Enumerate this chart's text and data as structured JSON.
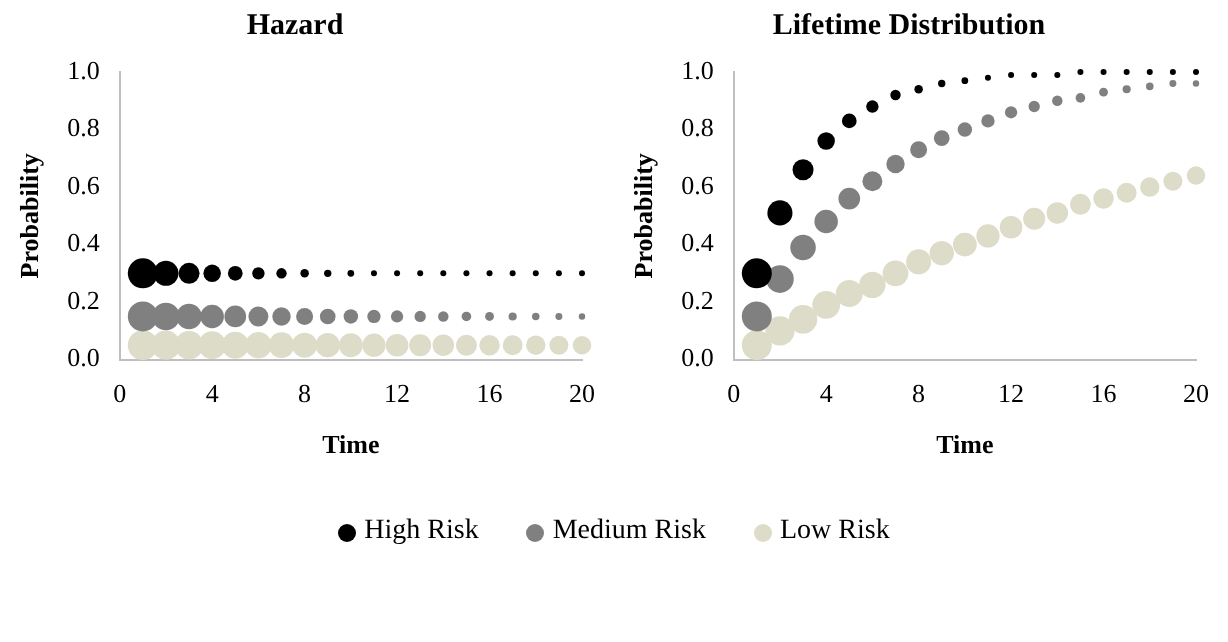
{
  "chart_data": [
    {
      "type": "bubble",
      "title": "Hazard",
      "xlabel": "Time",
      "ylabel": "Probability",
      "x": [
        1,
        2,
        3,
        4,
        5,
        6,
        7,
        8,
        9,
        10,
        11,
        12,
        13,
        14,
        15,
        16,
        17,
        18,
        19,
        20
      ],
      "series": [
        {
          "name": "High Risk",
          "color": "#000000",
          "values": [
            0.3,
            0.3,
            0.3,
            0.3,
            0.3,
            0.3,
            0.3,
            0.3,
            0.3,
            0.3,
            0.3,
            0.3,
            0.3,
            0.3,
            0.3,
            0.3,
            0.3,
            0.3,
            0.3,
            0.3
          ],
          "sizes": [
            1,
            0.7,
            0.49,
            0.34,
            0.24,
            0.17,
            0.12,
            0.08,
            0.06,
            0.05,
            0.04,
            0.04,
            0.04,
            0.04,
            0.04,
            0.04,
            0.04,
            0.04,
            0.04,
            0.04
          ]
        },
        {
          "name": "Medium Risk",
          "color": "#808080",
          "values": [
            0.15,
            0.15,
            0.15,
            0.15,
            0.15,
            0.15,
            0.15,
            0.15,
            0.15,
            0.15,
            0.15,
            0.15,
            0.15,
            0.15,
            0.15,
            0.15,
            0.15,
            0.15,
            0.15,
            0.15
          ],
          "sizes": [
            1,
            0.85,
            0.723,
            0.614,
            0.522,
            0.444,
            0.377,
            0.321,
            0.272,
            0.232,
            0.197,
            0.167,
            0.142,
            0.121,
            0.103,
            0.087,
            0.074,
            0.063,
            0.054,
            0.046
          ]
        },
        {
          "name": "Low Risk",
          "color": "#dcdcc8",
          "values": [
            0.05,
            0.05,
            0.05,
            0.05,
            0.05,
            0.05,
            0.05,
            0.05,
            0.05,
            0.05,
            0.05,
            0.05,
            0.05,
            0.05,
            0.05,
            0.05,
            0.05,
            0.05,
            0.05,
            0.05
          ],
          "sizes": [
            1,
            0.95,
            0.903,
            0.857,
            0.815,
            0.774,
            0.735,
            0.698,
            0.663,
            0.63,
            0.599,
            0.569,
            0.54,
            0.513,
            0.488,
            0.463,
            0.44,
            0.418,
            0.397,
            0.377
          ]
        }
      ],
      "xlim": [
        0,
        20
      ],
      "xticks": [
        0,
        4,
        8,
        12,
        16,
        20
      ],
      "ylim": [
        0,
        1
      ],
      "yticks": [
        {
          "value": 0,
          "label": "0.0"
        },
        {
          "value": 0.2,
          "label": "0.2"
        },
        {
          "value": 0.4,
          "label": "0.4"
        },
        {
          "value": 0.6,
          "label": "0.6"
        },
        {
          "value": 0.8,
          "label": "0.8"
        },
        {
          "value": 1,
          "label": "1.0"
        }
      ],
      "grid": false,
      "legend": "bottom"
    },
    {
      "type": "bubble",
      "title": "Lifetime Distribution",
      "xlabel": "Time",
      "ylabel": "Probability",
      "x": [
        1,
        2,
        3,
        4,
        5,
        6,
        7,
        8,
        9,
        10,
        11,
        12,
        13,
        14,
        15,
        16,
        17,
        18,
        19,
        20
      ],
      "series": [
        {
          "color": "#000000",
          "values": [
            0.3,
            0.51,
            0.66,
            0.76,
            0.83,
            0.88,
            0.92,
            0.94,
            0.96,
            0.97,
            0.98,
            0.99,
            0.99,
            0.99,
            1.0,
            1.0,
            1.0,
            1.0,
            1.0,
            1.0
          ],
          "sizes": [
            1,
            0.7,
            0.49,
            0.34,
            0.24,
            0.17,
            0.12,
            0.08,
            0.06,
            0.05,
            0.04,
            0.04,
            0.04,
            0.04,
            0.04,
            0.04,
            0.04,
            0.04,
            0.04,
            0.04
          ]
        },
        {
          "color": "#808080",
          "values": [
            0.15,
            0.28,
            0.39,
            0.48,
            0.56,
            0.62,
            0.68,
            0.73,
            0.77,
            0.8,
            0.83,
            0.86,
            0.88,
            0.9,
            0.91,
            0.93,
            0.94,
            0.95,
            0.96,
            0.96
          ],
          "sizes": [
            1,
            0.85,
            0.723,
            0.614,
            0.522,
            0.444,
            0.377,
            0.321,
            0.272,
            0.232,
            0.197,
            0.167,
            0.142,
            0.121,
            0.103,
            0.087,
            0.074,
            0.063,
            0.054,
            0.046
          ]
        },
        {
          "color": "#dcdcc8",
          "values": [
            0.05,
            0.1,
            0.14,
            0.19,
            0.23,
            0.26,
            0.3,
            0.34,
            0.37,
            0.4,
            0.43,
            0.46,
            0.49,
            0.51,
            0.54,
            0.56,
            0.58,
            0.6,
            0.62,
            0.64
          ],
          "sizes": [
            1,
            0.95,
            0.903,
            0.857,
            0.815,
            0.774,
            0.735,
            0.698,
            0.663,
            0.63,
            0.599,
            0.569,
            0.54,
            0.513,
            0.488,
            0.463,
            0.44,
            0.418,
            0.397,
            0.377
          ]
        }
      ],
      "xlim": [
        0,
        20
      ],
      "xticks": [
        0,
        4,
        8,
        12,
        16,
        20
      ],
      "ylim": [
        0,
        1
      ],
      "yticks": [
        {
          "value": 0,
          "label": "0.0"
        },
        {
          "value": 0.2,
          "label": "0.2"
        },
        {
          "value": 0.4,
          "label": "0.4"
        },
        {
          "value": 0.6,
          "label": "0.6"
        },
        {
          "value": 0.8,
          "label": "0.8"
        },
        {
          "value": 1,
          "label": "1.0"
        }
      ],
      "grid": false
    }
  ]
}
